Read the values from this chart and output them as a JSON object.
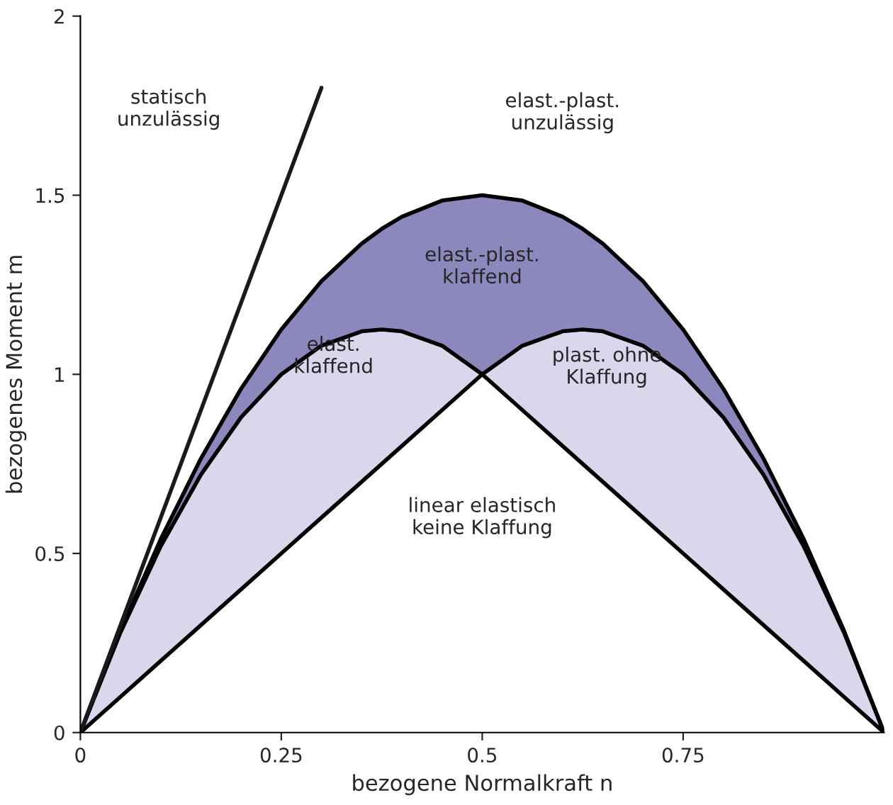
{
  "chart_data": {
    "type": "area",
    "xlabel": "bezogene Normalkraft n",
    "ylabel": "bezogenes Moment m",
    "x": [
      0,
      0.05,
      0.1,
      0.15,
      0.2,
      0.25,
      0.3,
      0.35,
      0.375,
      0.4,
      0.45,
      0.5,
      0.55,
      0.6,
      0.625,
      0.65,
      0.7,
      0.75,
      0.8,
      0.85,
      0.9,
      0.95,
      1
    ],
    "series": [
      {
        "color": "#8c88bd",
        "values": [
          0,
          0.285,
          0.54,
          0.765,
          0.96,
          1.125,
          1.26,
          1.365,
          1.406,
          1.44,
          1.485,
          1.5,
          1.485,
          1.44,
          1.406,
          1.365,
          1.26,
          1.125,
          0.96,
          0.765,
          0.54,
          0.285,
          0
        ]
      },
      {
        "color": "#dcd6ec",
        "values": [
          0,
          0.28,
          0.52,
          0.72,
          0.88,
          1.0,
          1.08,
          1.12,
          1.125,
          1.12,
          1.08,
          1.0,
          1.08,
          1.12,
          1.125,
          1.12,
          1.08,
          1.0,
          0.88,
          0.72,
          0.52,
          0.28,
          0
        ]
      },
      {
        "color": "#ffffff",
        "values": [
          0,
          0.1,
          0.2,
          0.3,
          0.4,
          0.5,
          0.6,
          0.7,
          0.75,
          0.8,
          0.9,
          1.0,
          0.9,
          0.8,
          0.75,
          0.7,
          0.6,
          0.5,
          0.4,
          0.3,
          0.2,
          0.1,
          0
        ]
      },
      {
        "type": "line",
        "color": "#1a1a1a",
        "x": [
          0,
          0.3
        ],
        "values": [
          0,
          1.8
        ]
      }
    ],
    "xlim": [
      0,
      1
    ],
    "ylim": [
      0,
      2
    ],
    "xticks": [
      0,
      0.25,
      0.5,
      0.75
    ],
    "yticks": [
      0,
      0.5,
      1,
      1.5,
      2
    ],
    "grid": false,
    "annotations": [
      "statisch\nunzulässig",
      "elast.-plast.\nunzulässig",
      "elast.-plast.\nklaffend",
      "elast.\nklaffend",
      "plast. ohne\nKlaffung",
      "linear elastisch\nkeine Klaffung"
    ]
  }
}
